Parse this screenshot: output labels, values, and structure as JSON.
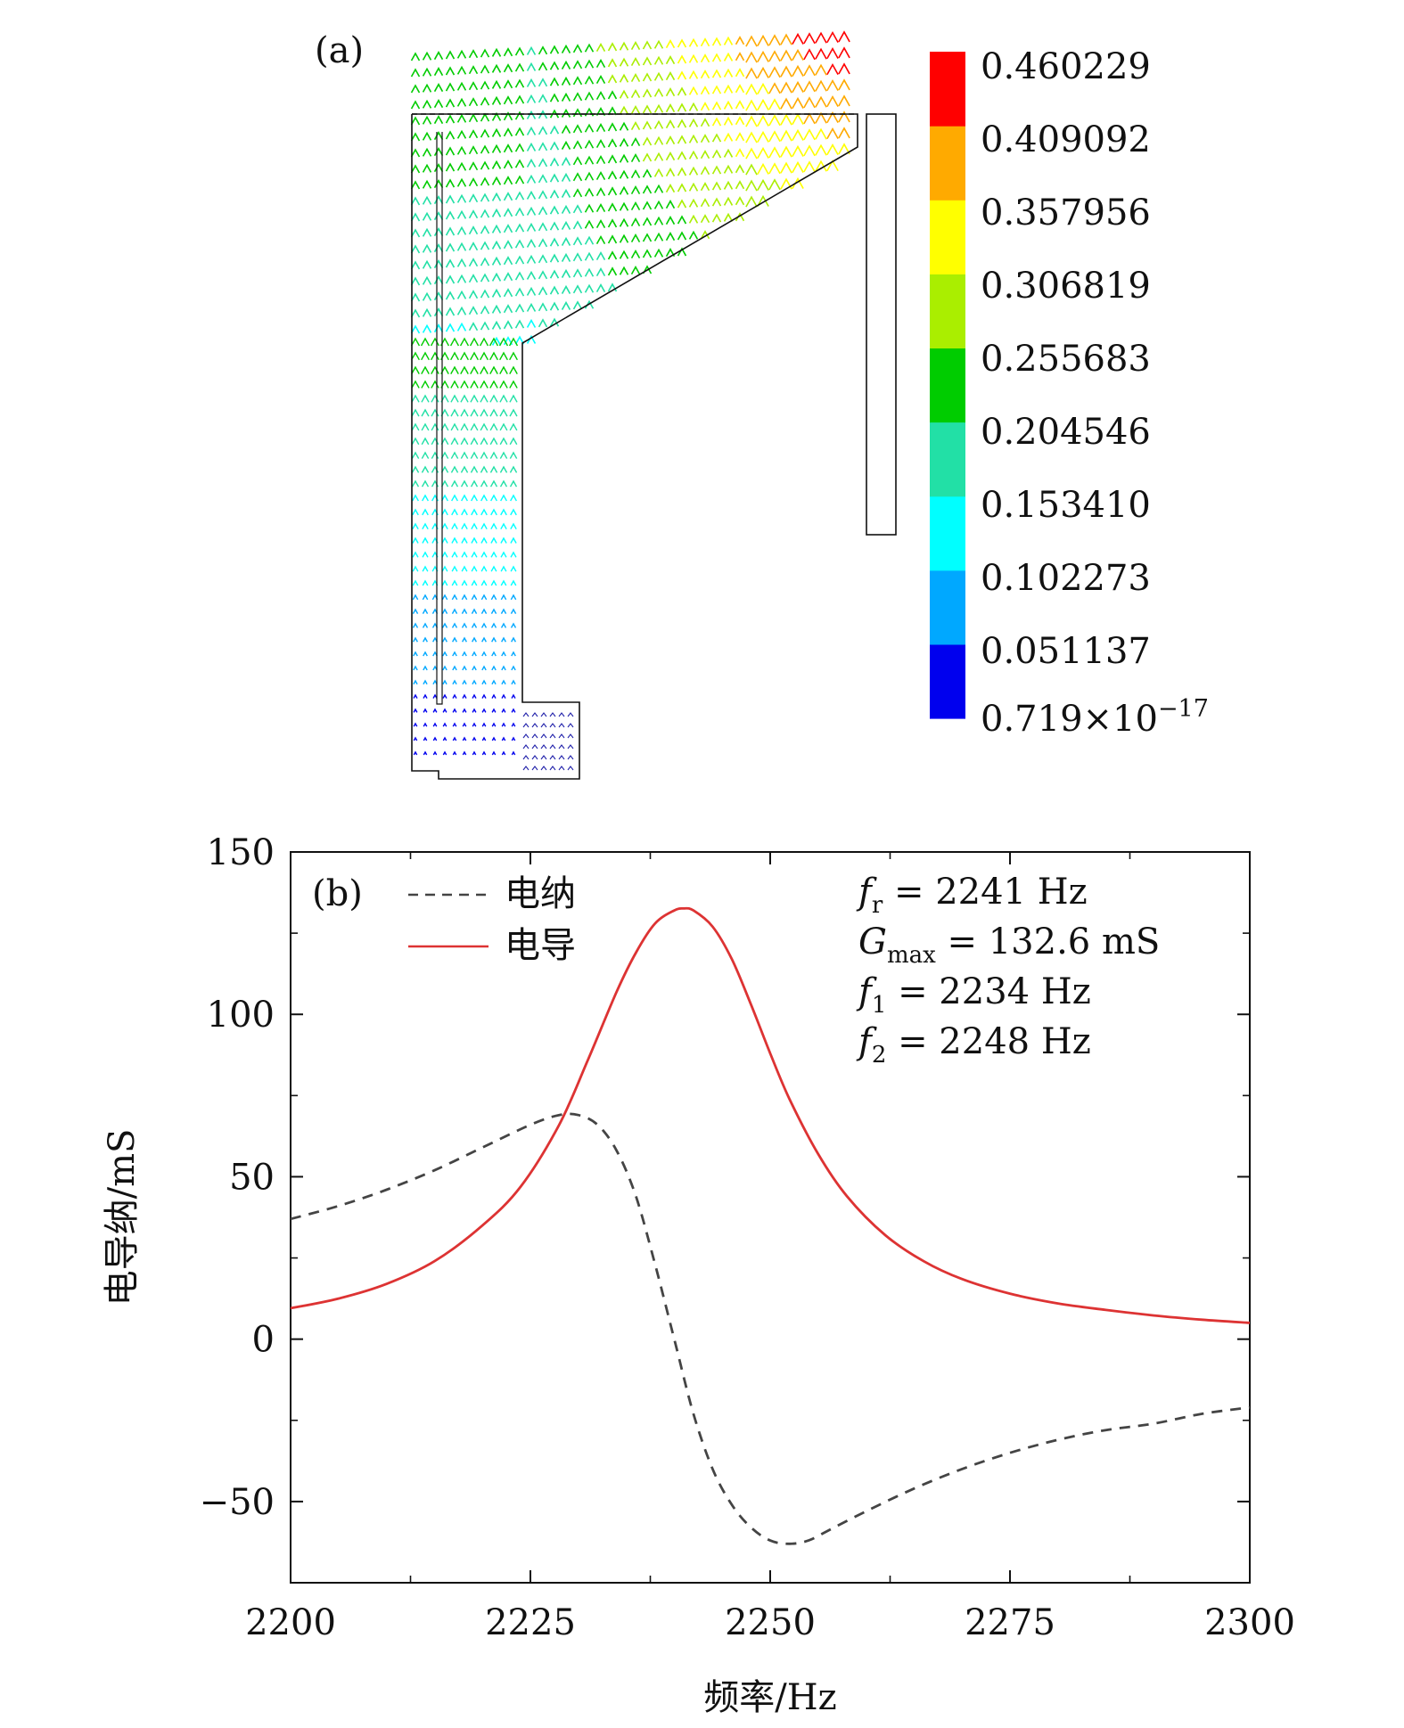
{
  "panel_a": {
    "label": "(a)",
    "colorbar": {
      "colors": [
        "#0000ee",
        "#00a8ff",
        "#00ffff",
        "#22e0a6",
        "#00cc00",
        "#aaee00",
        "#ffff00",
        "#ffaa00",
        "#ff0000"
      ],
      "labels": [
        "0.460229",
        "0.409092",
        "0.357956",
        "0.306819",
        "0.255683",
        "0.204546",
        "0.153410",
        "0.102273",
        "0.051137"
      ],
      "min_label_mantissa": "0.719",
      "min_label_times": "×10",
      "min_label_exp": "−17"
    }
  },
  "panel_b": {
    "label": "(b)",
    "ylabel": "电导纳/mS",
    "xlabel": "频率/Hz",
    "legend": {
      "susceptance": "电纳",
      "conductance": "电导"
    },
    "annotations": {
      "fr": {
        "sym": "f",
        "sub": "r",
        "rest": " = 2241  Hz"
      },
      "gmax": {
        "sym": "G",
        "sub": "max",
        "rest": " = 132.6  mS"
      },
      "f1": {
        "sym": "f",
        "sub": "1",
        "rest": " = 2234  Hz"
      },
      "f2": {
        "sym": "f",
        "sub": "2",
        "rest": " = 2248  Hz"
      }
    }
  },
  "chart_data": {
    "type": "line",
    "xlim": [
      2200,
      2300
    ],
    "ylim": [
      -75,
      150
    ],
    "xticks": [
      2200,
      2225,
      2250,
      2275,
      2300
    ],
    "xtick_labels": [
      "2200",
      "2225",
      "2250",
      "2275",
      "2300"
    ],
    "yticks": [
      -50,
      0,
      50,
      100,
      150
    ],
    "ytick_labels": [
      "−50",
      "0",
      "50",
      "100",
      "150"
    ],
    "grid": false,
    "legend_position": "top-left",
    "series": [
      {
        "name": "电纳",
        "color": "#444444",
        "style": "dashed",
        "x": [
          2200,
          2205,
          2210,
          2215,
          2220,
          2225,
          2228,
          2230,
          2232,
          2234,
          2236,
          2238,
          2240,
          2242,
          2244,
          2246,
          2248,
          2250,
          2252,
          2254,
          2256,
          2260,
          2265,
          2270,
          2275,
          2280,
          2285,
          2290,
          2295,
          2300
        ],
        "y": [
          37,
          41,
          46,
          52,
          59,
          66,
          69,
          69,
          66,
          58,
          44,
          23,
          0,
          -23,
          -40,
          -51,
          -58,
          -62,
          -63,
          -62,
          -59,
          -53,
          -46,
          -40,
          -35,
          -31,
          -28,
          -26,
          -23,
          -21
        ]
      },
      {
        "name": "电导",
        "color": "#dd3333",
        "style": "solid",
        "x": [
          2200,
          2205,
          2210,
          2215,
          2220,
          2224,
          2228,
          2231,
          2234,
          2236,
          2238,
          2240,
          2241,
          2242,
          2244,
          2246,
          2248,
          2250,
          2252,
          2255,
          2258,
          2262,
          2266,
          2270,
          2275,
          2280,
          2285,
          2290,
          2295,
          2300
        ],
        "y": [
          9.5,
          12.5,
          17,
          24,
          35,
          47,
          66,
          86,
          107,
          119,
          128,
          132,
          132.6,
          132,
          127,
          117,
          103,
          88,
          74,
          57,
          44,
          32,
          24,
          18.5,
          14,
          11,
          9,
          7.3,
          6,
          5
        ]
      }
    ]
  }
}
